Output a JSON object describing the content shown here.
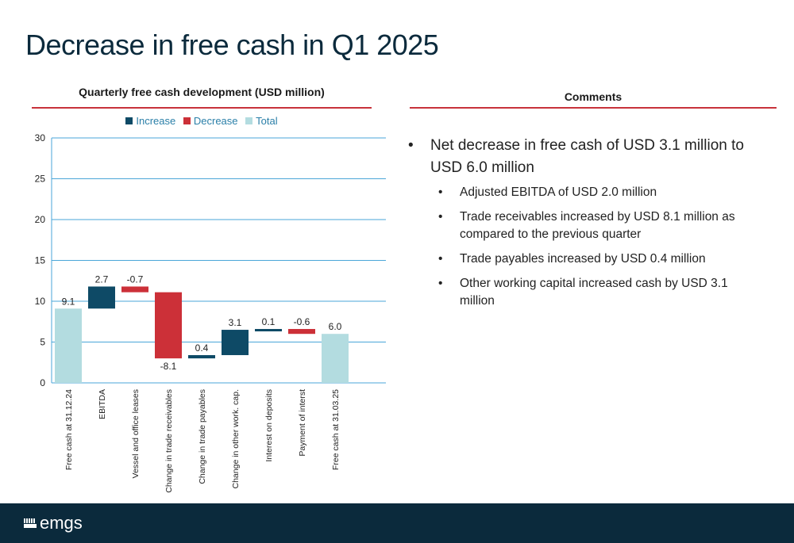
{
  "page": {
    "title": "Decrease in free cash in Q1 2025",
    "comments_title": "Comments",
    "brand": "emgs"
  },
  "colors": {
    "increase": "#0e4a66",
    "decrease": "#cc3038",
    "total": "#b3dce0",
    "accent": "#c8323a",
    "footer": "#0b2a3c"
  },
  "legend": [
    {
      "label": "Increase",
      "color": "#0e4a66"
    },
    {
      "label": "Decrease",
      "color": "#cc3038"
    },
    {
      "label": "Total",
      "color": "#b3dce0"
    }
  ],
  "chart_data": {
    "type": "bar",
    "subtype": "waterfall",
    "title": "Quarterly free cash development (USD million)",
    "categories": [
      "Free cash at 31.12.24",
      "EBITDA",
      "Vessel and office leases",
      "Change in trade receivables",
      "Change in trade payables",
      "Change in other work. cap.",
      "Interest on deposits",
      "Payment of interst",
      "Free cash at 31.03.25"
    ],
    "kinds": [
      "total",
      "increase",
      "decrease",
      "decrease",
      "increase",
      "increase",
      "increase",
      "decrease",
      "total"
    ],
    "values": [
      9.1,
      2.7,
      -0.7,
      -8.1,
      0.4,
      3.1,
      0.1,
      -0.6,
      6.0
    ],
    "value_labels": [
      "9.1",
      "2.7",
      "-0.7",
      "-8.1",
      "0.4",
      "3.1",
      "0.1",
      "-0.6",
      "6.0"
    ],
    "ylim": [
      0,
      30
    ],
    "yticks": [
      0,
      5,
      10,
      15,
      20,
      25,
      30
    ],
    "grid": true,
    "legend_position": "top"
  },
  "comments": [
    {
      "level": 1,
      "text": "Net decrease in free cash of USD 3.1 million to USD 6.0 million"
    },
    {
      "level": 2,
      "text": "Adjusted EBITDA of USD 2.0 million"
    },
    {
      "level": 2,
      "text": "Trade receivables increased by USD 8.1 million as compared to the previous quarter"
    },
    {
      "level": 2,
      "text": "Trade payables increased by USD 0.4 million"
    },
    {
      "level": 2,
      "text": "Other working capital increased cash by USD 3.1 million"
    }
  ]
}
